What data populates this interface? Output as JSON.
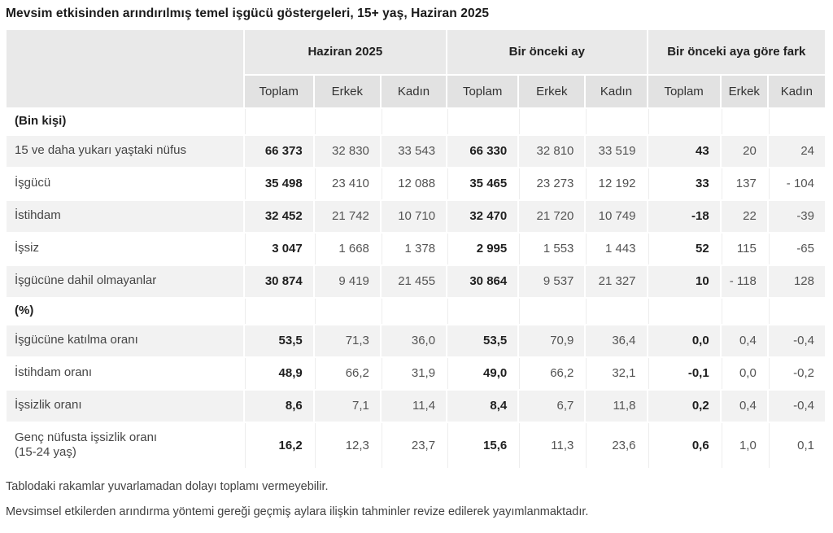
{
  "title": "Mevsim etkisinden arındırılmış temel işgücü göstergeleri, 15+ yaş, Haziran 2025",
  "colors": {
    "header_bg": "#e9e9e9",
    "subheader_bg": "#e2e2e2",
    "stripe_bg": "#f2f2f2"
  },
  "chart_data": {
    "type": "table",
    "title": "Mevsim etkisinden arındırılmış temel işgücü göstergeleri, 15+ yaş, Haziran 2025",
    "column_groups": [
      "Haziran 2025",
      "Bir önceki ay",
      "Bir önceki aya göre fark"
    ],
    "sub_headers": [
      "Toplam",
      "Erkek",
      "Kadın",
      "Toplam",
      "Erkek",
      "Kadın",
      "Toplam",
      "Erkek",
      "Kadın"
    ],
    "sections": [
      {
        "label": "(Bin kişi)",
        "rows": [
          {
            "label": "15 ve daha yukarı yaştaki nüfus",
            "values": [
              "66 373",
              "32 830",
              "33 543",
              "66 330",
              "32 810",
              "33 519",
              "43",
              "20",
              "24"
            ]
          },
          {
            "label": "İşgücü",
            "values": [
              "35 498",
              "23 410",
              "12 088",
              "35 465",
              "23 273",
              "12 192",
              "33",
              "137",
              "- 104"
            ]
          },
          {
            "label": "İstihdam",
            "values": [
              "32 452",
              "21 742",
              "10 710",
              "32 470",
              "21 720",
              "10 749",
              "-18",
              "22",
              "-39"
            ]
          },
          {
            "label": "İşsiz",
            "values": [
              "3 047",
              "1 668",
              "1 378",
              "2 995",
              "1 553",
              "1 443",
              "52",
              "115",
              "-65"
            ]
          },
          {
            "label": "İşgücüne dahil olmayanlar",
            "values": [
              "30 874",
              "9 419",
              "21 455",
              "30 864",
              "9 537",
              "21 327",
              "10",
              "- 118",
              "128"
            ]
          }
        ]
      },
      {
        "label": "(%)",
        "rows": [
          {
            "label": "İşgücüne katılma oranı",
            "values": [
              "53,5",
              "71,3",
              "36,0",
              "53,5",
              "70,9",
              "36,4",
              "0,0",
              "0,4",
              "-0,4"
            ]
          },
          {
            "label": "İstihdam oranı",
            "values": [
              "48,9",
              "66,2",
              "31,9",
              "49,0",
              "66,2",
              "32,1",
              "-0,1",
              "0,0",
              "-0,2"
            ]
          },
          {
            "label": "İşsizlik oranı",
            "values": [
              "8,6",
              "7,1",
              "11,4",
              "8,4",
              "6,7",
              "11,8",
              "0,2",
              "0,4",
              "-0,4"
            ]
          },
          {
            "label": "Genç nüfusta işsizlik oranı\n(15-24 yaş)",
            "values": [
              "16,2",
              "12,3",
              "23,7",
              "15,6",
              "11,3",
              "23,6",
              "0,6",
              "1,0",
              "0,1"
            ]
          }
        ]
      }
    ]
  },
  "footnotes": [
    "Tablodaki rakamlar yuvarlamadan dolayı toplamı vermeyebilir.",
    "Mevsimsel etkilerden arındırma yöntemi gereği geçmiş aylara ilişkin tahminler revize edilerek yayımlanmaktadır."
  ]
}
